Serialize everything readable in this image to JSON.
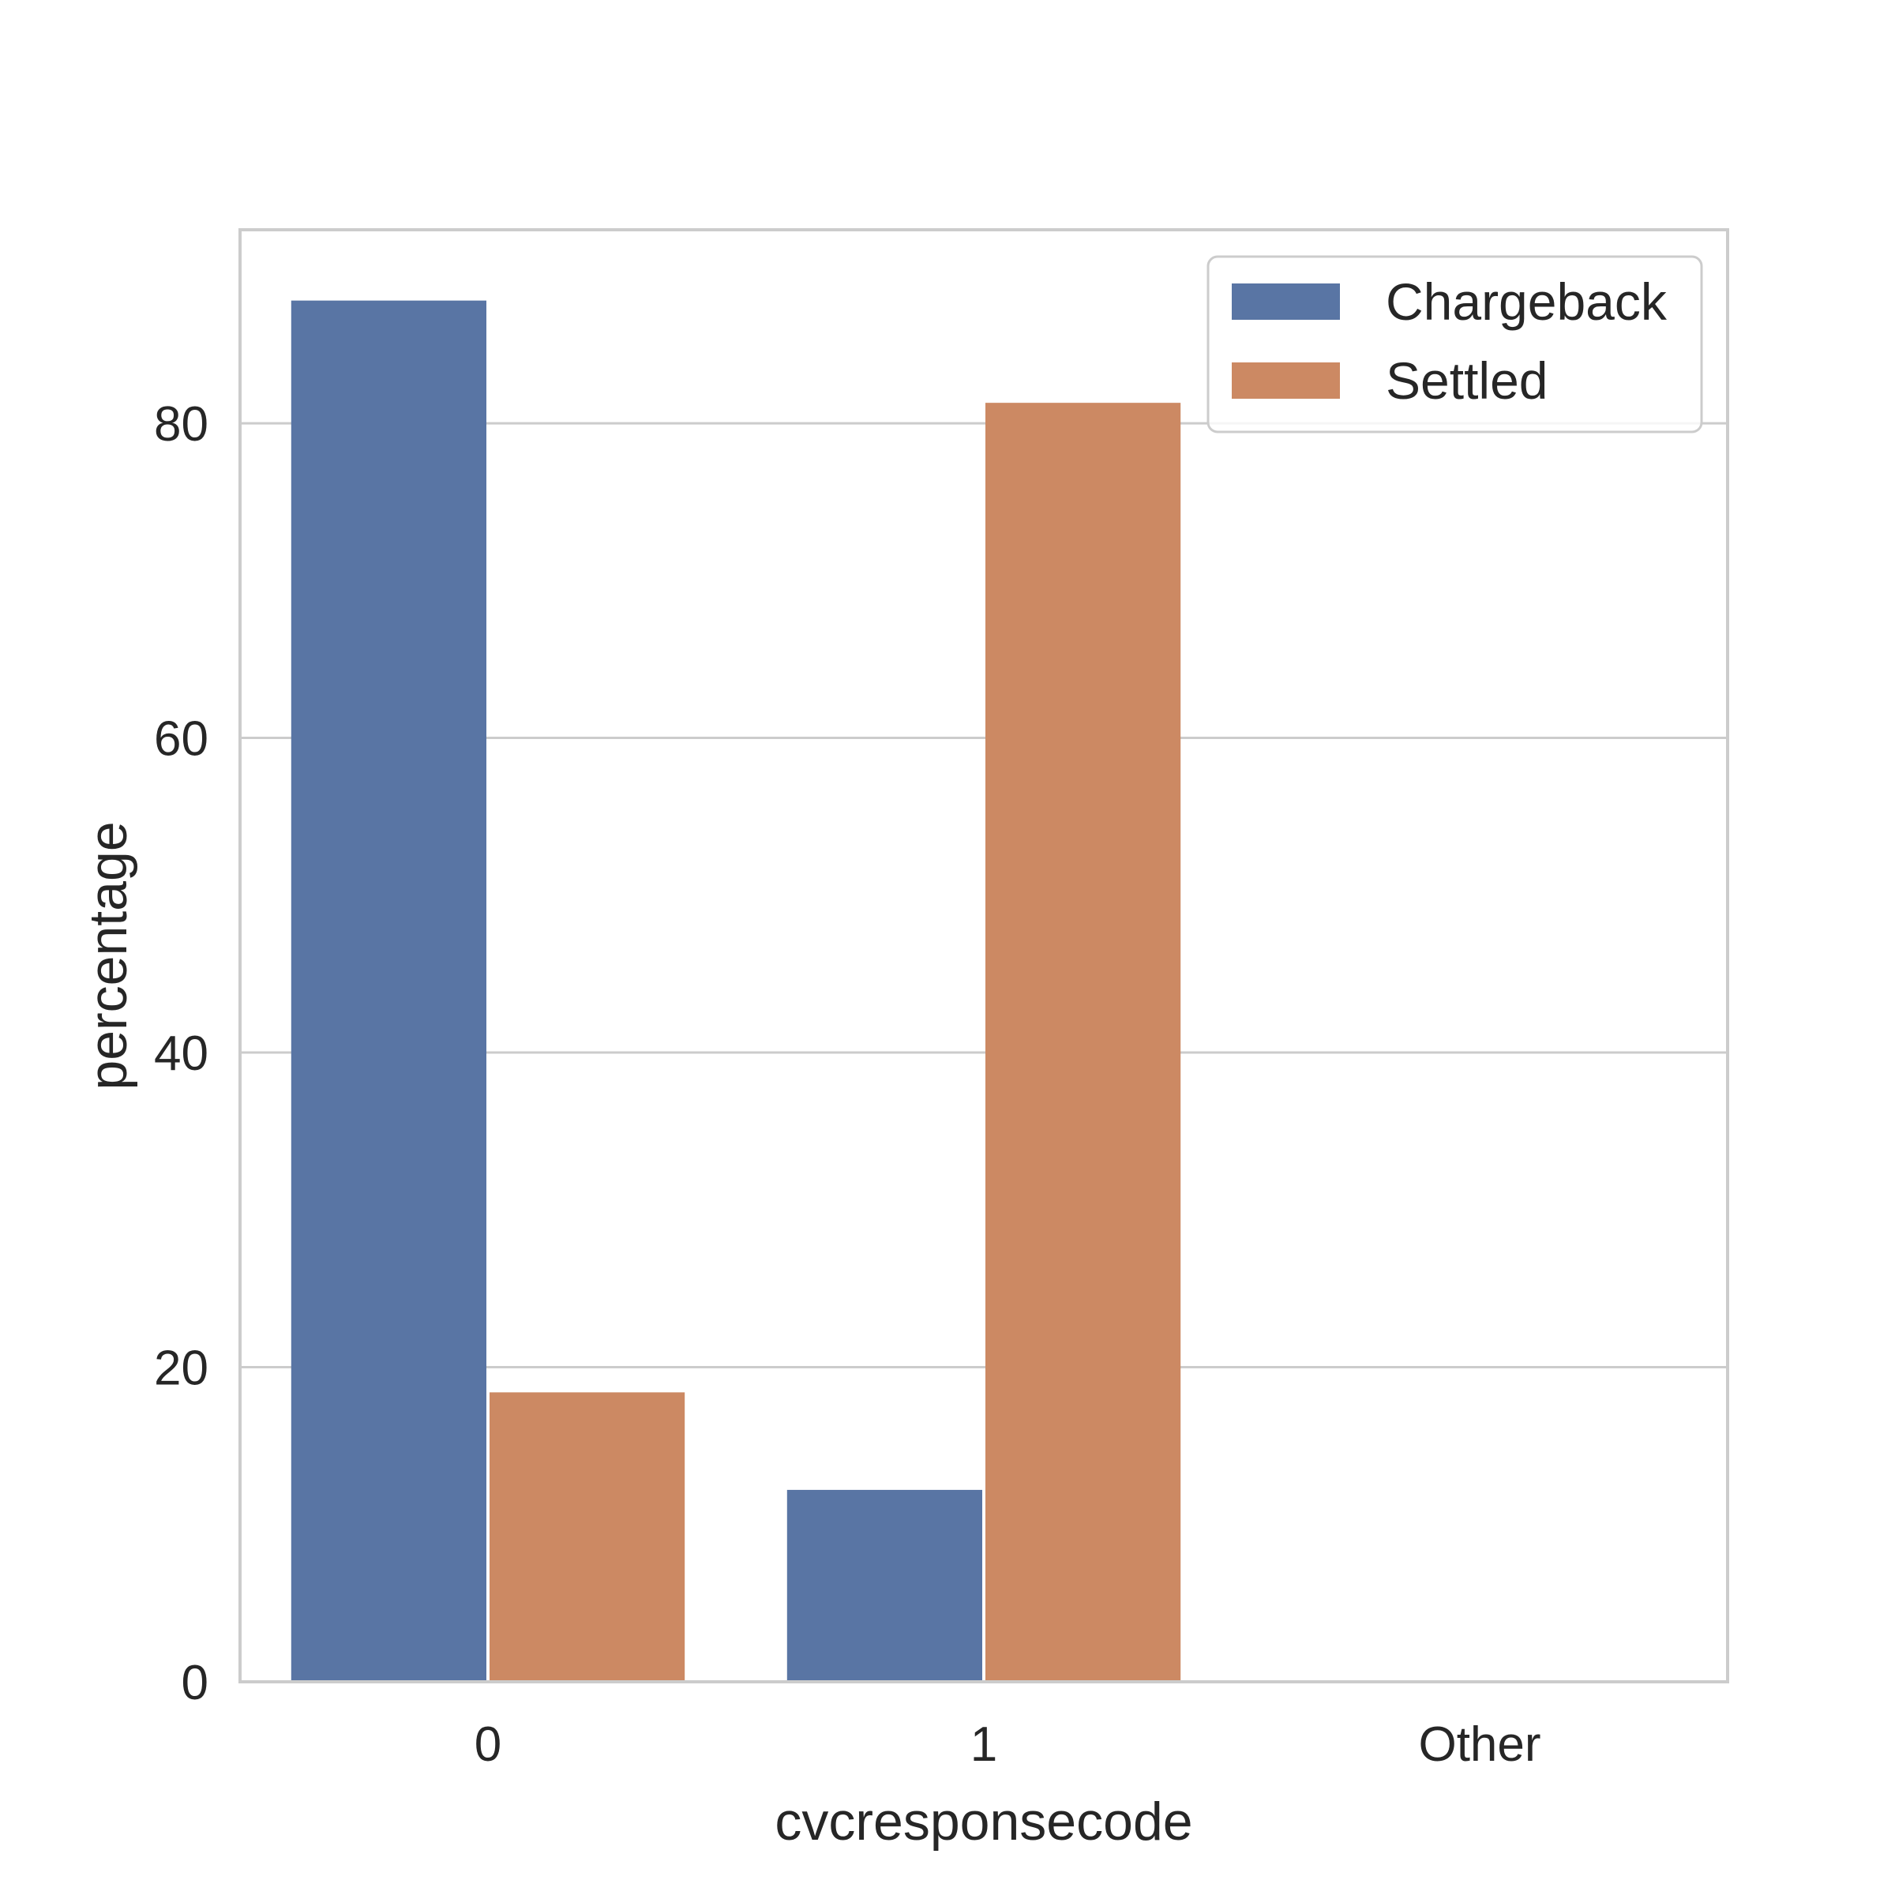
{
  "chart_data": {
    "type": "bar",
    "categories": [
      "0",
      "1",
      "Other"
    ],
    "series": [
      {
        "name": "Chargeback",
        "values": [
          87.8,
          12.2,
          0
        ],
        "color": "#5975a4"
      },
      {
        "name": "Settled",
        "values": [
          18.4,
          81.3,
          0
        ],
        "color": "#cc8963"
      }
    ],
    "xlabel": "cvcresponsecode",
    "ylabel": "percentage",
    "ylim": [
      0,
      92.3
    ],
    "yticks": [
      0,
      20,
      40,
      60,
      80
    ],
    "ytick_labels": [
      "0",
      "20",
      "40",
      "60",
      "80"
    ],
    "grid": true,
    "grid_color": "#cccccc",
    "legend_position": "top-right"
  }
}
